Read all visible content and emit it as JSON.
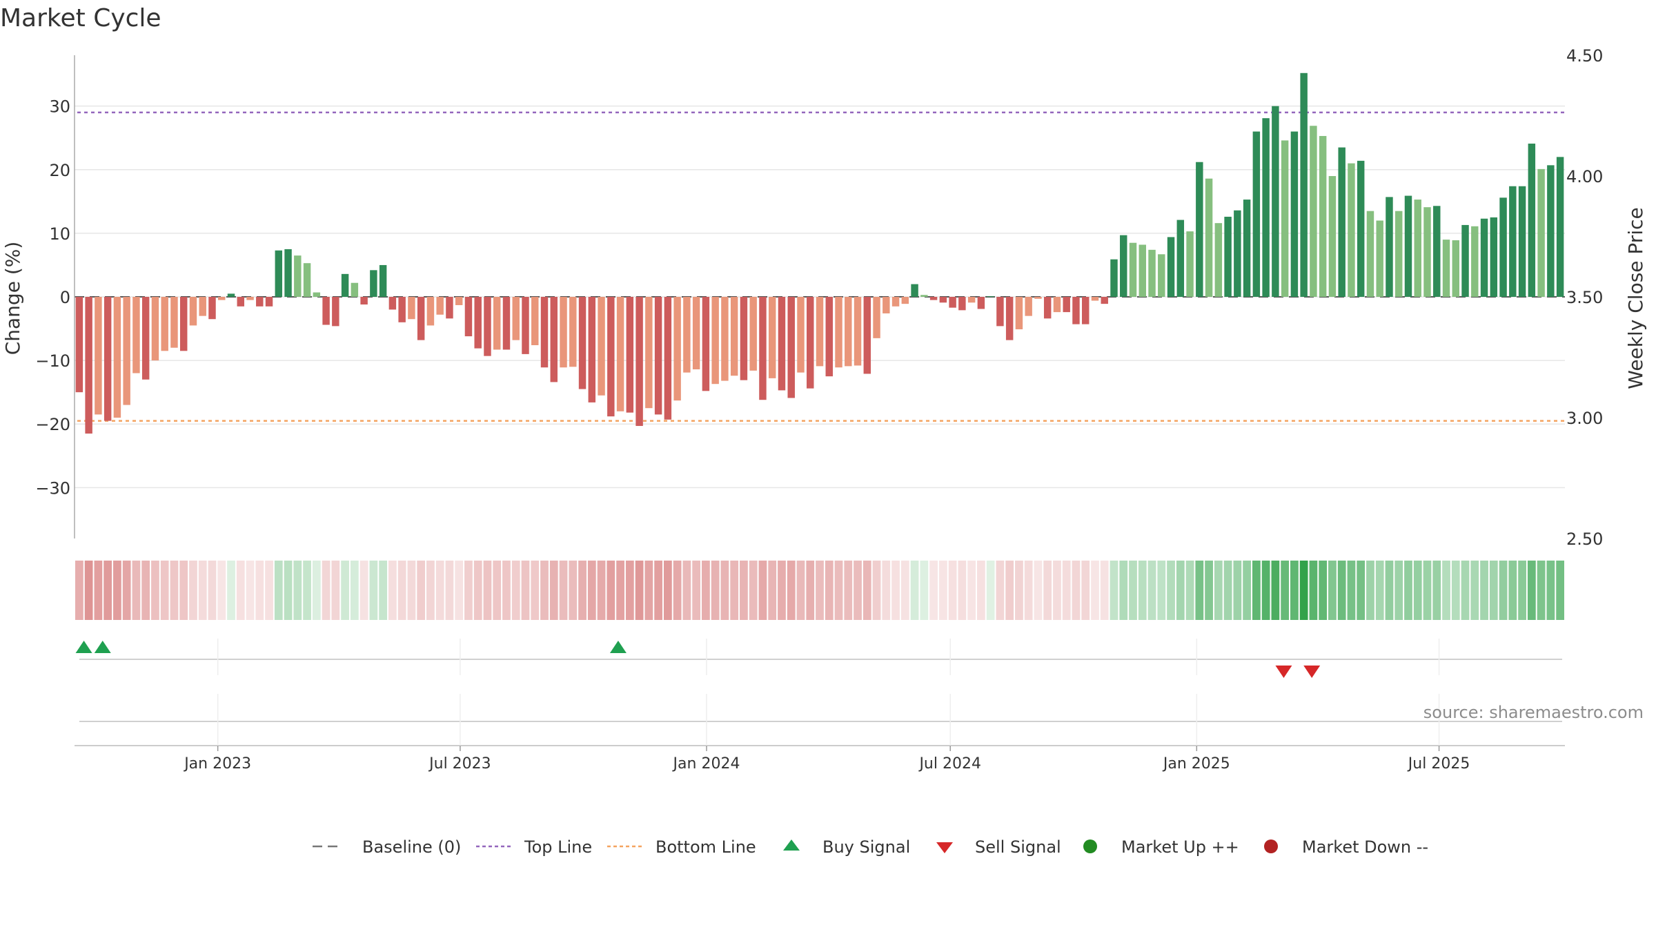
{
  "title": "Market Cycle",
  "source": "source: sharemaestro.com",
  "colors": {
    "strong_up": "#2e8b57",
    "weak_up": "#86bf7f",
    "strong_down": "#cd5c5c",
    "weak_down": "#e9967a",
    "top_line": "#9467bd",
    "bottom_line": "#f4a460",
    "baseline": "#555555",
    "buy": "#1fa050",
    "sell": "#d62728",
    "market_up": "#228b22",
    "market_down": "#b22222",
    "grid": "#e6e6e6"
  },
  "legend": [
    {
      "label": "Baseline (0)",
      "icon": "dash-line-icon"
    },
    {
      "label": "Top Line",
      "icon": "dotted-purple-line-icon"
    },
    {
      "label": "Bottom Line",
      "icon": "dotted-orange-line-icon"
    },
    {
      "label": "Buy Signal",
      "icon": "up-triangle-icon"
    },
    {
      "label": "Sell Signal",
      "icon": "down-triangle-icon"
    },
    {
      "label": "Market Up ++",
      "icon": "green-dot-icon"
    },
    {
      "label": "Market Down --",
      "icon": "red-dot-icon"
    }
  ],
  "chart_data": {
    "type": "bar",
    "title": "Market Cycle",
    "ylabel": "Change (%)",
    "y2label": "Weekly Close Price",
    "ylim": [
      -38,
      38
    ],
    "y2lim": [
      2.5,
      4.5
    ],
    "yticks": [
      -30,
      -20,
      -10,
      0,
      10,
      20,
      30
    ],
    "y2ticks": [
      "2.50",
      "3.00",
      "3.50",
      "4.00",
      "4.50"
    ],
    "ytick_labels": [
      "−30",
      "−20",
      "−10",
      "0",
      "10",
      "20",
      "30"
    ],
    "top_line": 29,
    "bottom_line": -19.5,
    "start_date": "2022-09-16",
    "end_date": "2025-10-03",
    "xtick_labels": [
      "Jan 2023",
      "Jul 2023",
      "Jan 2024",
      "Jul 2024",
      "Jan 2025",
      "Jul 2025"
    ],
    "xtick_dates": [
      "2023-01-01",
      "2023-07-01",
      "2024-01-01",
      "2024-07-01",
      "2025-01-01",
      "2025-07-01"
    ],
    "values": [
      -15,
      -21.5,
      -18.5,
      -19.5,
      -19,
      -17,
      -12,
      -13,
      -10,
      -8.5,
      -8,
      -8.5,
      -4.5,
      -3,
      -3.5,
      -0.5,
      0.5,
      -1.5,
      -0.5,
      -1.5,
      -1.5,
      7.3,
      7.5,
      6.5,
      5.3,
      0.7,
      -4.4,
      -4.6,
      3.6,
      2.2,
      -1.2,
      4.2,
      5,
      -2,
      -4,
      -3.5,
      -6.8,
      -4.5,
      -2.8,
      -3.4,
      -1.3,
      -6.2,
      -8.1,
      -9.3,
      -8.3,
      -8.3,
      -6.8,
      -9,
      -7.6,
      -11.1,
      -13.4,
      -11.1,
      -11,
      -14.5,
      -16.6,
      -15.5,
      -18.8,
      -18,
      -18.2,
      -20.3,
      -17.5,
      -18.5,
      -19.3,
      -16.3,
      -11.9,
      -11.4,
      -14.8,
      -13.7,
      -13.2,
      -12.4,
      -13.1,
      -11.6,
      -16.2,
      -12.8,
      -14.7,
      -15.9,
      -11.9,
      -14.4,
      -10.9,
      -12.5,
      -11.1,
      -10.9,
      -10.8,
      -12.1,
      -6.5,
      -2.6,
      -1.5,
      -1.1,
      2,
      0.3,
      -0.5,
      -0.9,
      -1.7,
      -2.1,
      -0.9,
      -1.9,
      0.1,
      -4.6,
      -6.8,
      -5.1,
      -3,
      -0.3,
      -3.4,
      -2.4,
      -2.4,
      -4.3,
      -4.3,
      -0.6,
      -1.1,
      5.9,
      9.7,
      8.5,
      8.2,
      7.4,
      6.7,
      9.4,
      12.1,
      10.3,
      21.2,
      18.6,
      11.6,
      12.6,
      13.6,
      15.3,
      26,
      28.1,
      30,
      24.6,
      26,
      35.2,
      26.9,
      25.3,
      19,
      23.5,
      21,
      21.4,
      13.5,
      12,
      15.7,
      13.5,
      15.9,
      15.3,
      14.1,
      14.3,
      9,
      8.9,
      11.3,
      11.1,
      12.3,
      12.5,
      15.6,
      17.4,
      17.4,
      24.1,
      20.1,
      20.7,
      22
    ],
    "buy_signals": [
      "2022-09-23",
      "2022-10-07",
      "2023-10-27"
    ],
    "sell_signals": [
      "2025-03-07",
      "2025-03-28"
    ]
  }
}
